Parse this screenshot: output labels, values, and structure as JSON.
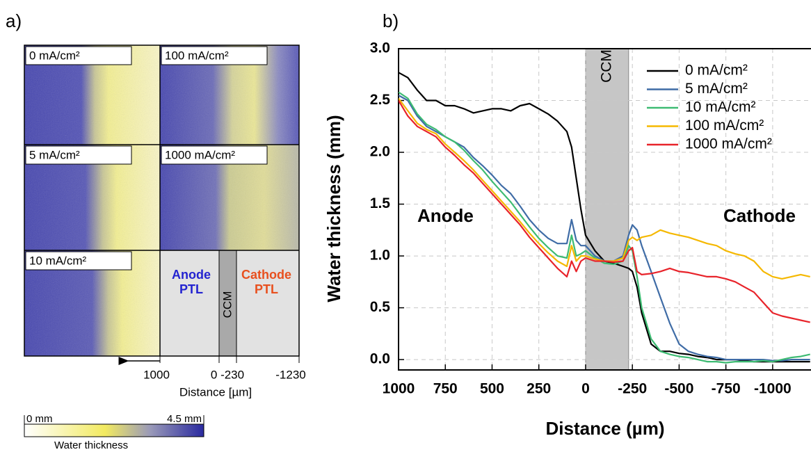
{
  "panel_a": {
    "label": "a)",
    "images": [
      "0 mA/cm²",
      "100 mA/cm²",
      "5 mA/cm²",
      "1000 mA/cm²",
      "10 mA/cm²"
    ],
    "schematic": {
      "anode": "Anode PTL",
      "ccm": "CCM",
      "cathode": "Cathode PTL"
    },
    "axis_ticks": [
      "1000",
      "0 -230",
      "-1230"
    ],
    "axis_label": "Distance [µm]",
    "colorbar": {
      "min": "0 mm",
      "max": "4.5 mm",
      "label": "Water thickness"
    }
  },
  "chart_data": {
    "type": "line",
    "panel_label": "b)",
    "x_label": "Distance (µm)",
    "y_label": "Water thickness (mm)",
    "annotations": [
      {
        "text": "Anode",
        "color": "#e8232a"
      },
      {
        "text": "Cathode",
        "color": "#1f2fd6"
      }
    ],
    "band": {
      "label": "CCM",
      "range": [
        0,
        -230
      ],
      "color": "#c6c6c6"
    },
    "xlim": [
      1000,
      -1205
    ],
    "ylim": [
      -0.1,
      3.0
    ],
    "xticks": [
      1000,
      750,
      500,
      250,
      0,
      -250,
      -500,
      -750,
      -1000
    ],
    "yticks": [
      {
        "value": 0,
        "label": "0.0"
      },
      0.5,
      {
        "value": 1,
        "label": "1.0"
      },
      1.5,
      {
        "value": 2,
        "label": "2.0"
      },
      2.5,
      {
        "value": 3,
        "label": "3.0"
      }
    ],
    "grid": true,
    "legend": "upper right",
    "x": [
      1000,
      950,
      900,
      850,
      800,
      750,
      700,
      650,
      600,
      550,
      500,
      450,
      400,
      350,
      300,
      250,
      200,
      150,
      100,
      75,
      50,
      25,
      0,
      -50,
      -100,
      -150,
      -200,
      -230,
      -250,
      -275,
      -300,
      -350,
      -400,
      -450,
      -500,
      -550,
      -600,
      -650,
      -700,
      -750,
      -800,
      -850,
      -900,
      -950,
      -1000,
      -1050,
      -1100,
      -1150,
      -1200
    ],
    "series": [
      {
        "name": "0 mA/cm²",
        "color": "#000000",
        "values": [
          2.77,
          2.72,
          2.6,
          2.5,
          2.5,
          2.45,
          2.45,
          2.42,
          2.38,
          2.4,
          2.42,
          2.42,
          2.4,
          2.45,
          2.47,
          2.42,
          2.37,
          2.3,
          2.2,
          2.05,
          1.75,
          1.45,
          1.2,
          1.05,
          0.95,
          0.93,
          0.9,
          0.88,
          0.85,
          0.7,
          0.45,
          0.15,
          0.08,
          0.08,
          0.06,
          0.05,
          0.03,
          0.02,
          0.0,
          0.0,
          0.0,
          -0.01,
          -0.02,
          -0.02,
          -0.02,
          -0.02,
          -0.02,
          -0.02,
          -0.02
        ]
      },
      {
        "name": "5 mA/cm²",
        "color": "#3f6ca6",
        "values": [
          2.55,
          2.5,
          2.35,
          2.25,
          2.2,
          2.15,
          2.1,
          2.05,
          1.95,
          1.87,
          1.78,
          1.68,
          1.6,
          1.48,
          1.35,
          1.25,
          1.17,
          1.12,
          1.12,
          1.35,
          1.15,
          1.1,
          1.1,
          1.0,
          0.95,
          0.95,
          1.0,
          1.2,
          1.3,
          1.25,
          1.1,
          0.85,
          0.6,
          0.35,
          0.15,
          0.08,
          0.05,
          0.03,
          0.02,
          0.0,
          0.0,
          0.0,
          0.0,
          0.0,
          -0.01,
          -0.01,
          0.0,
          0.0,
          0.0
        ]
      },
      {
        "name": "10 mA/cm²",
        "color": "#3dbb72",
        "values": [
          2.58,
          2.52,
          2.37,
          2.27,
          2.22,
          2.15,
          2.1,
          2.02,
          1.92,
          1.83,
          1.72,
          1.62,
          1.52,
          1.4,
          1.28,
          1.17,
          1.08,
          1.0,
          0.98,
          1.2,
          1.0,
          1.02,
          1.05,
          0.98,
          0.93,
          0.92,
          0.95,
          1.1,
          1.05,
          0.8,
          0.5,
          0.2,
          0.08,
          0.05,
          0.03,
          0.02,
          0.0,
          -0.02,
          -0.02,
          -0.03,
          -0.02,
          -0.02,
          -0.02,
          -0.01,
          -0.02,
          0.0,
          0.02,
          0.03,
          0.05
        ]
      },
      {
        "name": "100 mA/cm²",
        "color": "#f5b800",
        "values": [
          2.52,
          2.4,
          2.28,
          2.22,
          2.18,
          2.08,
          2.0,
          1.92,
          1.83,
          1.73,
          1.63,
          1.53,
          1.43,
          1.33,
          1.22,
          1.12,
          1.03,
          0.95,
          0.9,
          1.1,
          0.95,
          1.0,
          1.0,
          0.97,
          0.95,
          0.95,
          0.98,
          1.15,
          1.18,
          1.15,
          1.18,
          1.2,
          1.25,
          1.22,
          1.2,
          1.18,
          1.15,
          1.12,
          1.1,
          1.05,
          1.02,
          1.0,
          0.95,
          0.85,
          0.8,
          0.78,
          0.8,
          0.82,
          0.8
        ]
      },
      {
        "name": "1000 mA/cm²",
        "color": "#e8232a",
        "values": [
          2.5,
          2.35,
          2.25,
          2.2,
          2.15,
          2.05,
          1.97,
          1.88,
          1.8,
          1.7,
          1.6,
          1.5,
          1.4,
          1.3,
          1.18,
          1.08,
          0.98,
          0.88,
          0.8,
          0.95,
          0.85,
          0.95,
          0.98,
          0.95,
          0.95,
          0.94,
          0.95,
          1.05,
          1.08,
          0.85,
          0.82,
          0.83,
          0.85,
          0.88,
          0.85,
          0.84,
          0.82,
          0.8,
          0.8,
          0.78,
          0.75,
          0.7,
          0.65,
          0.55,
          0.45,
          0.42,
          0.4,
          0.38,
          0.36
        ]
      }
    ]
  }
}
